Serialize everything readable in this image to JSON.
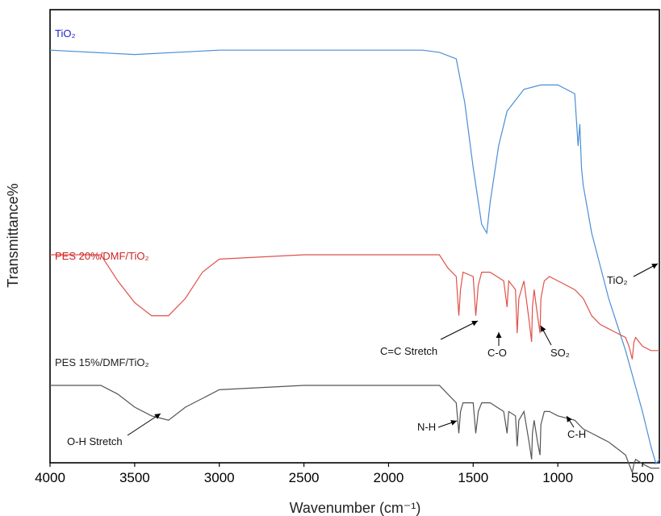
{
  "chart_data": {
    "type": "line",
    "xlabel": "Wavenumber (cm⁻¹)",
    "ylabel": "Transmittance%",
    "xlim": [
      4000,
      400
    ],
    "x_reversed": true,
    "xticks": [
      4000,
      3500,
      3000,
      2500,
      2000,
      1500,
      1000,
      500
    ],
    "yticks": [],
    "grid": false,
    "series": [
      {
        "name": "TiO₂",
        "color": "#4a8fd4",
        "label_color": "#2222cc",
        "x": [
          4000,
          3500,
          3000,
          2500,
          2000,
          1800,
          1700,
          1600,
          1550,
          1500,
          1450,
          1420,
          1400,
          1350,
          1300,
          1200,
          1100,
          1000,
          900,
          880,
          870,
          860,
          850,
          800,
          700,
          600,
          500,
          450,
          420,
          400
        ],
        "y": [
          97,
          96,
          97,
          97,
          97,
          97,
          96.5,
          95,
          85,
          70,
          57,
          55,
          62,
          75,
          83,
          88,
          89,
          89,
          87,
          75,
          80,
          70,
          66,
          55,
          40,
          28,
          14,
          6,
          2,
          3
        ]
      },
      {
        "name": "PES 20%/DMF/TiO₂",
        "color": "#e0524a",
        "label_color": "#cc2222",
        "x": [
          4000,
          3700,
          3600,
          3500,
          3400,
          3300,
          3200,
          3100,
          3000,
          2500,
          2000,
          1700,
          1650,
          1600,
          1585,
          1575,
          1560,
          1500,
          1485,
          1470,
          1450,
          1400,
          1320,
          1300,
          1290,
          1250,
          1240,
          1230,
          1200,
          1170,
          1155,
          1150,
          1140,
          1120,
          1105,
          1100,
          1080,
          1050,
          1000,
          900,
          850,
          800,
          750,
          700,
          600,
          580,
          560,
          550,
          540,
          500,
          450,
          400
        ],
        "y": [
          50,
          50,
          44,
          39,
          36,
          36,
          40,
          46,
          49,
          50,
          50,
          50,
          47,
          45,
          36,
          42,
          46,
          45,
          36,
          43,
          46,
          46,
          44,
          38,
          44,
          42,
          32,
          40,
          44,
          35,
          30,
          38,
          42,
          36,
          32,
          40,
          44,
          45,
          44,
          42,
          40,
          36,
          34,
          33,
          31,
          29,
          26,
          30,
          31,
          29,
          28,
          28
        ]
      },
      {
        "name": "PES 15%/DMF/TiO₂",
        "color": "#555555",
        "label_color": "#222222",
        "x": [
          4000,
          3700,
          3600,
          3500,
          3400,
          3350,
          3300,
          3200,
          3000,
          2500,
          2000,
          1700,
          1650,
          1600,
          1585,
          1575,
          1560,
          1500,
          1485,
          1470,
          1450,
          1400,
          1320,
          1300,
          1290,
          1250,
          1240,
          1230,
          1200,
          1170,
          1155,
          1150,
          1140,
          1120,
          1105,
          1100,
          1080,
          1050,
          1000,
          900,
          850,
          800,
          750,
          700,
          600,
          580,
          560,
          550,
          540,
          500,
          450,
          400
        ],
        "y": [
          20,
          20,
          18,
          15,
          13,
          12.5,
          12,
          15,
          19,
          20,
          20,
          20,
          18,
          16,
          9,
          14,
          16,
          16,
          9,
          14,
          16,
          16,
          14,
          9,
          14,
          13,
          6,
          12,
          14,
          7,
          3,
          9,
          12,
          7,
          4,
          11,
          14,
          14,
          13,
          12,
          10,
          9,
          8,
          7,
          4,
          2,
          0,
          2,
          3,
          2,
          1,
          1
        ]
      }
    ],
    "annotations": [
      {
        "text": "TiO₂",
        "x": 420,
        "y": 2
      },
      {
        "text": "C=C Stretch",
        "x": 1485,
        "y": 36
      },
      {
        "text": "C-O",
        "x": 1240,
        "y": 32
      },
      {
        "text": "SO₂",
        "x": 1150,
        "y": 30
      },
      {
        "text": "O-H Stretch",
        "x": 3350,
        "y": 12.5
      },
      {
        "text": "N-H",
        "x": 1585,
        "y": 9
      },
      {
        "text": "C-H",
        "x": 880,
        "y": 11
      }
    ]
  }
}
